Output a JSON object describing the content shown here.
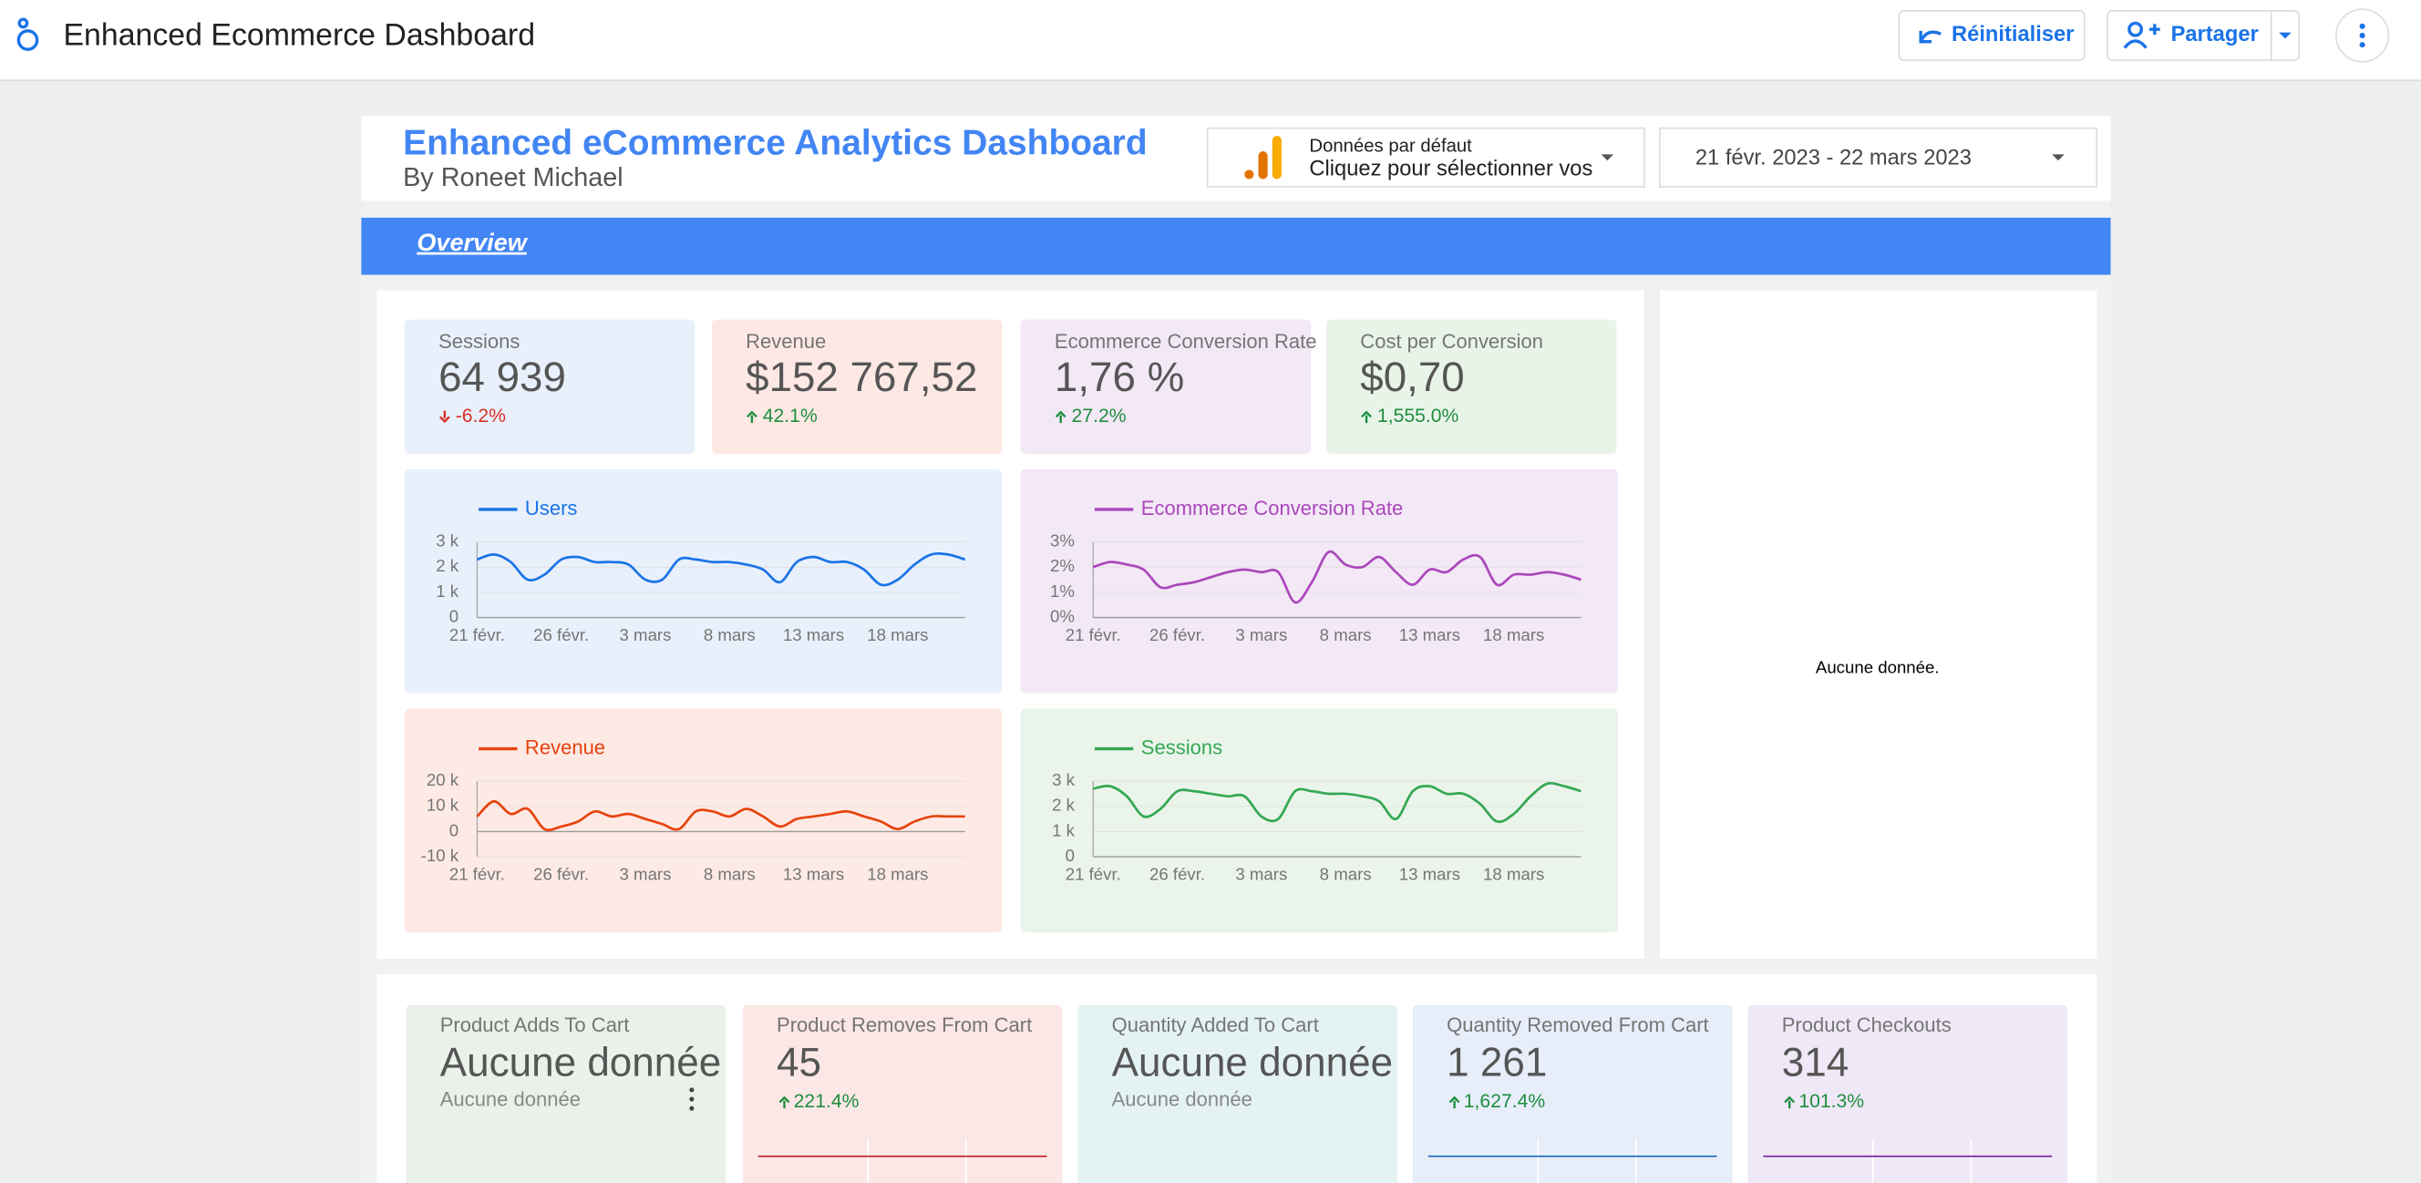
{
  "header": {
    "title": "Enhanced Ecommerce Dashboard",
    "reset": "Réinitialiser",
    "share": "Partager"
  },
  "report": {
    "title": "Enhanced eCommerce Analytics  Dashboard",
    "subtitle": "By Roneet Michael",
    "data_source": {
      "label": "Données par défaut",
      "value": "Cliquez pour sélectionner vos"
    },
    "date_range": "21 févr. 2023 - 22 mars 2023",
    "tab": "Overview",
    "empty": "Aucune donnée."
  },
  "scorecards": [
    {
      "label": "Sessions",
      "value": "64 939",
      "change": "-6.2%"
    },
    {
      "label": "Revenue",
      "value": "$152 767,52",
      "change": "42.1%"
    },
    {
      "label": "Ecommerce Conversion Rate",
      "value": "1,76 %",
      "change": "27.2%"
    },
    {
      "label": "Cost per Conversion",
      "value": "$0,70",
      "change": "1,555.0%"
    }
  ],
  "cart_scorecards": [
    {
      "label": "Product Adds To Cart",
      "value": "Aucune donnée",
      "note": "Aucune donnée"
    },
    {
      "label": "Product Removes From Cart",
      "value": "45",
      "change": "221.4%"
    },
    {
      "label": "Quantity Added To Cart",
      "value": "Aucune donnée",
      "note": "Aucune donnée"
    },
    {
      "label": "Quantity Removed From Cart",
      "value": "1 261",
      "change": "1,627.4%"
    },
    {
      "label": "Product Checkouts",
      "value": "314",
      "change": "101.3%"
    }
  ],
  "chart_data": [
    {
      "type": "line",
      "categories": [
        "21 févr.",
        null,
        null,
        null,
        null,
        "26 févr.",
        null,
        null,
        null,
        null,
        "3 mars",
        null,
        null,
        null,
        null,
        "8 mars",
        null,
        null,
        null,
        null,
        "13 mars",
        null,
        null,
        null,
        null,
        "18 mars",
        null,
        null,
        null,
        null
      ],
      "series": [
        {
          "name": "Users",
          "color": "#1a73e8",
          "values": [
            2300,
            2500,
            2200,
            1500,
            1700,
            2300,
            2400,
            2200,
            2200,
            2100,
            1500,
            1500,
            2300,
            2300,
            2200,
            2200,
            2100,
            1900,
            1400,
            2200,
            2400,
            2200,
            2200,
            1900,
            1300,
            1500,
            2100,
            2500,
            2500,
            2300
          ]
        }
      ],
      "ylim": [
        0,
        3000
      ],
      "yticks": [
        0,
        {
          "value": 1000,
          "label": "1 k"
        },
        {
          "value": 2000,
          "label": "2 k"
        },
        {
          "value": 3000,
          "label": "3 k"
        }
      ],
      "grid": true
    },
    {
      "type": "line",
      "categories": [
        "21 févr.",
        null,
        null,
        null,
        null,
        "26 févr.",
        null,
        null,
        null,
        null,
        "3 mars",
        null,
        null,
        null,
        null,
        "8 mars",
        null,
        null,
        null,
        null,
        "13 mars",
        null,
        null,
        null,
        null,
        "18 mars",
        null,
        null,
        null,
        null
      ],
      "series": [
        {
          "name": "Ecommerce Conversion Rate",
          "color": "#ab47bc",
          "values": [
            2.0,
            2.2,
            2.1,
            1.9,
            1.2,
            1.3,
            1.4,
            1.6,
            1.8,
            1.9,
            1.8,
            1.8,
            0.6,
            1.4,
            2.6,
            2.1,
            2.0,
            2.4,
            1.8,
            1.3,
            1.9,
            1.8,
            2.3,
            2.4,
            1.3,
            1.7,
            1.7,
            1.8,
            1.7,
            1.5
          ]
        }
      ],
      "ylim": [
        0,
        3
      ],
      "yticks": [
        {
          "value": 0,
          "label": "0%"
        },
        {
          "value": 1,
          "label": "1%"
        },
        {
          "value": 2,
          "label": "2%"
        },
        {
          "value": 3,
          "label": "3%"
        }
      ],
      "grid": true
    },
    {
      "type": "line",
      "categories": [
        "21 févr.",
        null,
        null,
        null,
        null,
        "26 févr.",
        null,
        null,
        null,
        null,
        "3 mars",
        null,
        null,
        null,
        null,
        "8 mars",
        null,
        null,
        null,
        null,
        "13 mars",
        null,
        null,
        null,
        null,
        "18 mars",
        null,
        null,
        null,
        null
      ],
      "series": [
        {
          "name": "Revenue",
          "color": "#e8430e",
          "values": [
            6000,
            12000,
            7000,
            9000,
            1000,
            2000,
            4000,
            8000,
            6000,
            7000,
            5000,
            3000,
            1000,
            8000,
            8000,
            6000,
            9000,
            6000,
            2000,
            5000,
            6000,
            7000,
            8000,
            6000,
            4000,
            1000,
            4000,
            6000,
            6000,
            6000
          ]
        }
      ],
      "ylim": [
        -10000,
        20000
      ],
      "yticks": [
        {
          "value": -10000,
          "label": "-10 k"
        },
        0,
        {
          "value": 10000,
          "label": "10 k"
        },
        {
          "value": 20000,
          "label": "20 k"
        }
      ],
      "grid": true
    },
    {
      "type": "line",
      "categories": [
        "21 févr.",
        null,
        null,
        null,
        null,
        "26 févr.",
        null,
        null,
        null,
        null,
        "3 mars",
        null,
        null,
        null,
        null,
        "8 mars",
        null,
        null,
        null,
        null,
        "13 mars",
        null,
        null,
        null,
        null,
        "18 mars",
        null,
        null,
        null,
        null
      ],
      "series": [
        {
          "name": "Sessions",
          "color": "#34a853",
          "values": [
            2700,
            2800,
            2400,
            1600,
            1900,
            2600,
            2600,
            2500,
            2400,
            2400,
            1600,
            1500,
            2600,
            2600,
            2500,
            2500,
            2400,
            2200,
            1500,
            2600,
            2800,
            2500,
            2500,
            2100,
            1400,
            1700,
            2400,
            2900,
            2800,
            2600
          ]
        }
      ],
      "ylim": [
        0,
        3000
      ],
      "yticks": [
        0,
        {
          "value": 1000,
          "label": "1 k"
        },
        {
          "value": 2000,
          "label": "2 k"
        },
        {
          "value": 3000,
          "label": "3 k"
        }
      ],
      "grid": true
    }
  ]
}
